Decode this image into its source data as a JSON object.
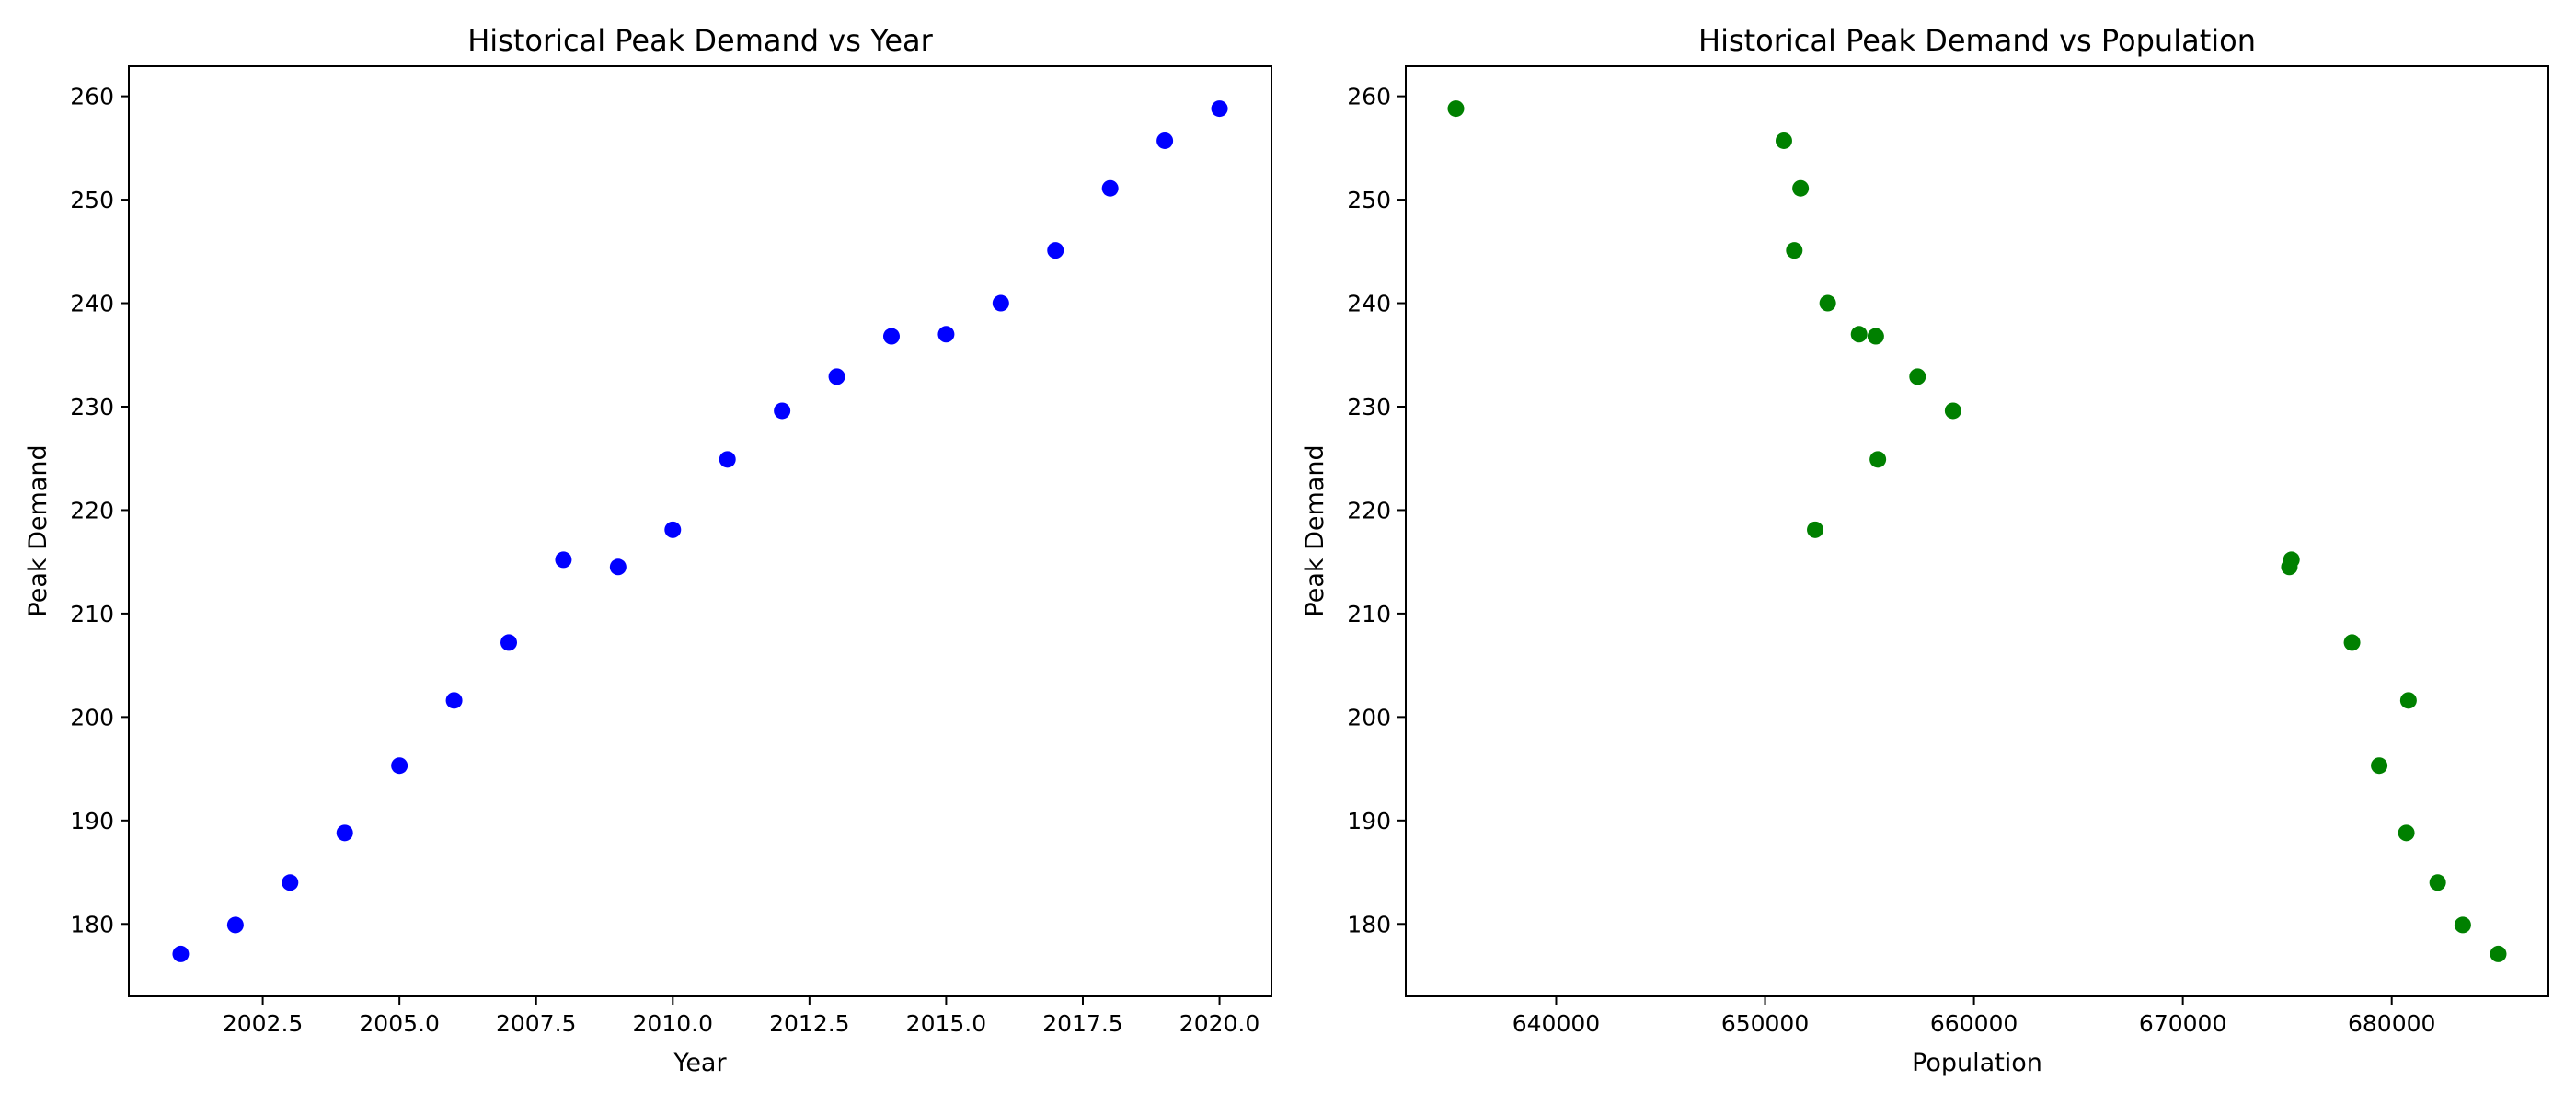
{
  "chart_data": [
    {
      "type": "scatter",
      "title": "Historical Peak Demand vs Year",
      "xlabel": "Year",
      "ylabel": "Peak Demand",
      "xlim": [
        2000.05,
        2020.95
      ],
      "ylim": [
        173.0,
        262.9
      ],
      "xticks": [
        2002.5,
        2005.0,
        2007.5,
        2010.0,
        2012.5,
        2015.0,
        2017.5,
        2020.0
      ],
      "xtick_labels": [
        "2002.5",
        "2005.0",
        "2007.5",
        "2010.0",
        "2012.5",
        "2015.0",
        "2017.5",
        "2020.0"
      ],
      "yticks": [
        180,
        190,
        200,
        210,
        220,
        230,
        240,
        250,
        260
      ],
      "ytick_labels": [
        "180",
        "190",
        "200",
        "210",
        "220",
        "230",
        "240",
        "250",
        "260"
      ],
      "grid": false,
      "color": "#0000ff",
      "x": [
        2001,
        2002,
        2003,
        2004,
        2005,
        2006,
        2007,
        2008,
        2009,
        2010,
        2011,
        2012,
        2013,
        2014,
        2015,
        2016,
        2017,
        2018,
        2019,
        2020
      ],
      "y": [
        177.1,
        179.9,
        184.0,
        188.8,
        195.3,
        201.6,
        207.2,
        215.2,
        214.5,
        218.1,
        224.9,
        229.6,
        232.9,
        236.8,
        237.0,
        240.0,
        245.1,
        251.1,
        255.7,
        258.8
      ]
    },
    {
      "type": "scatter",
      "title": "Historical Peak Demand vs Population",
      "xlabel": "Population",
      "ylabel": "Peak Demand",
      "xlim": [
        632800,
        687500
      ],
      "ylim": [
        173.0,
        262.9
      ],
      "xticks": [
        640000,
        650000,
        660000,
        670000,
        680000
      ],
      "xtick_labels": [
        "640000",
        "650000",
        "660000",
        "670000",
        "680000"
      ],
      "yticks": [
        180,
        190,
        200,
        210,
        220,
        230,
        240,
        250,
        260
      ],
      "ytick_labels": [
        "180",
        "190",
        "200",
        "210",
        "220",
        "230",
        "240",
        "250",
        "260"
      ],
      "grid": false,
      "color": "#008000",
      "x": [
        685100,
        683400,
        682200,
        680700,
        679400,
        680800,
        678100,
        675200,
        675100,
        652400,
        655400,
        659000,
        657300,
        655300,
        654500,
        653000,
        651400,
        651700,
        650900,
        635200
      ],
      "y": [
        177.1,
        179.9,
        184.0,
        188.8,
        195.3,
        201.6,
        207.2,
        215.2,
        214.5,
        218.1,
        224.9,
        229.6,
        232.9,
        236.8,
        237.0,
        240.0,
        245.1,
        251.1,
        255.7,
        258.8
      ]
    }
  ]
}
